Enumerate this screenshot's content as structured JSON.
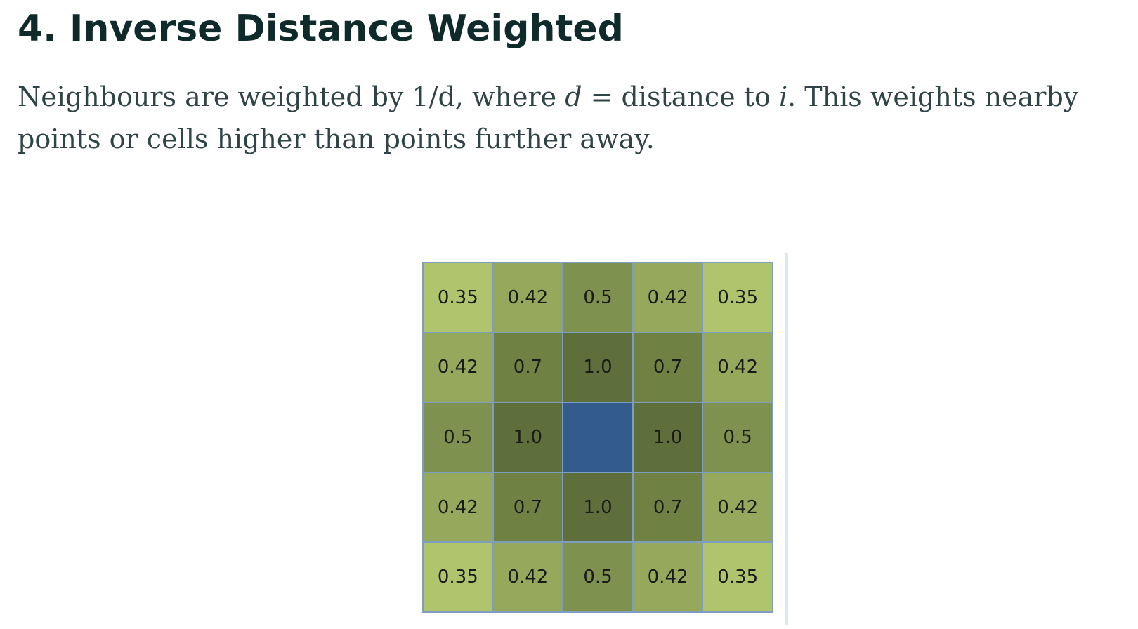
{
  "heading": "4. Inverse Distance Weighted",
  "paragraph": {
    "part1": "Neighbours are weighted by 1/d, where ",
    "var_d": "d",
    "part2": " = distance to ",
    "var_i": "i",
    "part3": ". This weights nearby points or cells higher than points further away."
  },
  "weight_grid": {
    "rows": [
      [
        "0.35",
        "0.42",
        "0.5",
        "0.42",
        "0.35"
      ],
      [
        "0.42",
        "0.7",
        "1.0",
        "0.7",
        "0.42"
      ],
      [
        "0.5",
        "1.0",
        "",
        "1.0",
        "0.5"
      ],
      [
        "0.42",
        "0.7",
        "1.0",
        "0.7",
        "0.42"
      ],
      [
        "0.35",
        "0.42",
        "0.5",
        "0.42",
        "0.35"
      ]
    ],
    "colors": {
      "0.35": "#b0c46e",
      "0.42": "#95a85c",
      "0.5": "#7f914f",
      "0.7": "#6f8244",
      "1.0": "#5f6f3b",
      "focal": "#335b8c",
      "border": "#7e9ec0"
    }
  }
}
